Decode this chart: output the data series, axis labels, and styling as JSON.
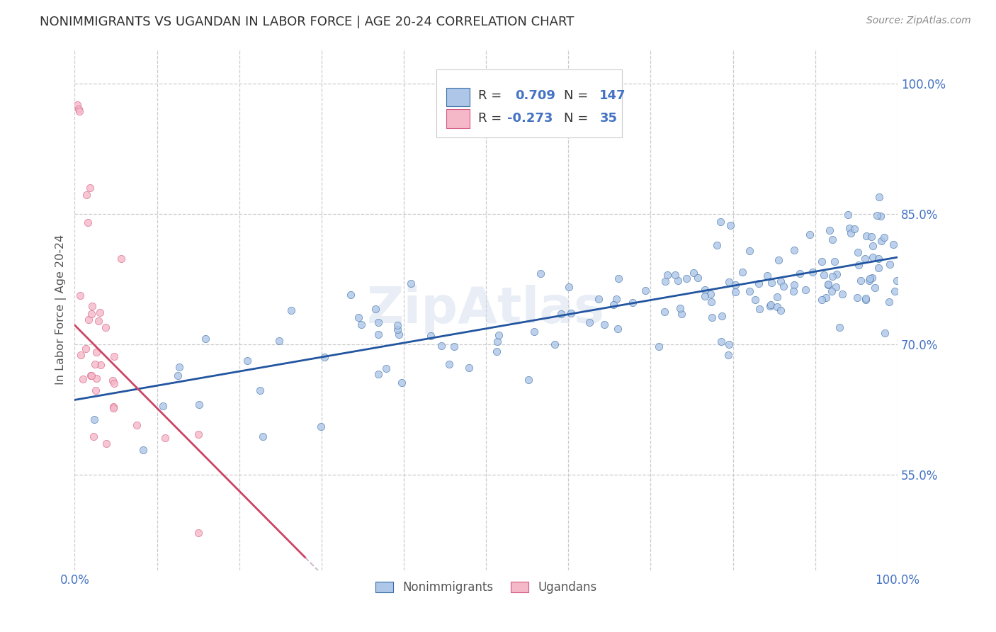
{
  "title": "NONIMMIGRANTS VS UGANDAN IN LABOR FORCE | AGE 20-24 CORRELATION CHART",
  "source": "Source: ZipAtlas.com",
  "ylabel": "In Labor Force | Age 20-24",
  "xlim": [
    0.0,
    1.0
  ],
  "ylim": [
    0.44,
    1.04
  ],
  "y_ticks_right": [
    0.55,
    0.7,
    0.85,
    1.0
  ],
  "y_tick_labels_right": [
    "55.0%",
    "70.0%",
    "85.0%",
    "100.0%"
  ],
  "blue_color": "#aec6e8",
  "pink_color": "#f5b8c8",
  "blue_edge_color": "#3a6ea5",
  "pink_edge_color": "#d45880",
  "blue_line_color": "#2255a0",
  "pink_line_color": "#cc4466",
  "dashed_line_color": "#c8b8c8",
  "watermark": "ZipAtlas",
  "legend_label_blue": "Nonimmigrants",
  "legend_label_pink": "Ugandans",
  "blue_trend_y_start": 0.636,
  "blue_trend_y_end": 0.8,
  "pink_trend_x_start": 0.0,
  "pink_trend_x_end": 0.28,
  "pink_trend_y_start": 0.722,
  "pink_trend_y_end": 0.455,
  "background_color": "#ffffff",
  "grid_color": "#cccccc",
  "title_color": "#303030",
  "axis_color": "#4472c4",
  "legend_box_color": "#bbbbbb"
}
